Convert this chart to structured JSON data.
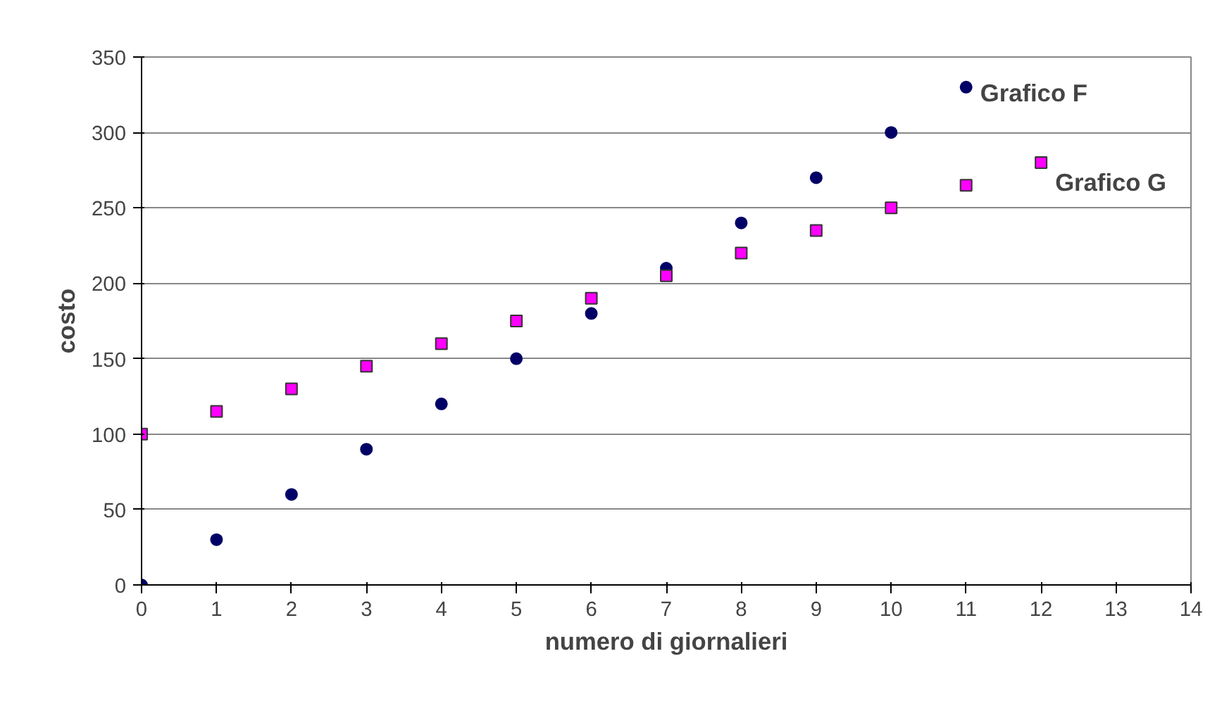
{
  "chart_data": {
    "type": "scatter",
    "xlabel": "numero di giornalieri",
    "ylabel": "costo",
    "xlim": [
      0,
      14
    ],
    "xticks": [
      0,
      1,
      2,
      3,
      4,
      5,
      6,
      7,
      8,
      9,
      10,
      11,
      12,
      13,
      14
    ],
    "ylim": [
      0,
      350
    ],
    "yticks": [
      0,
      50,
      100,
      150,
      200,
      250,
      300,
      350
    ],
    "grid": "y",
    "series": [
      {
        "name": "Grafico F",
        "color": "#000066",
        "marker": "circle",
        "x": [
          0,
          1,
          2,
          3,
          4,
          5,
          6,
          7,
          8,
          9,
          10,
          11
        ],
        "values": [
          0,
          30,
          60,
          90,
          120,
          150,
          180,
          210,
          240,
          270,
          300,
          330
        ]
      },
      {
        "name": "Grafico G",
        "color": "#ff00ff",
        "marker": "square",
        "x": [
          0,
          1,
          2,
          3,
          4,
          5,
          6,
          7,
          8,
          9,
          10,
          11,
          12
        ],
        "values": [
          100,
          115,
          130,
          145,
          160,
          175,
          190,
          205,
          220,
          235,
          250,
          265,
          280
        ]
      }
    ]
  }
}
